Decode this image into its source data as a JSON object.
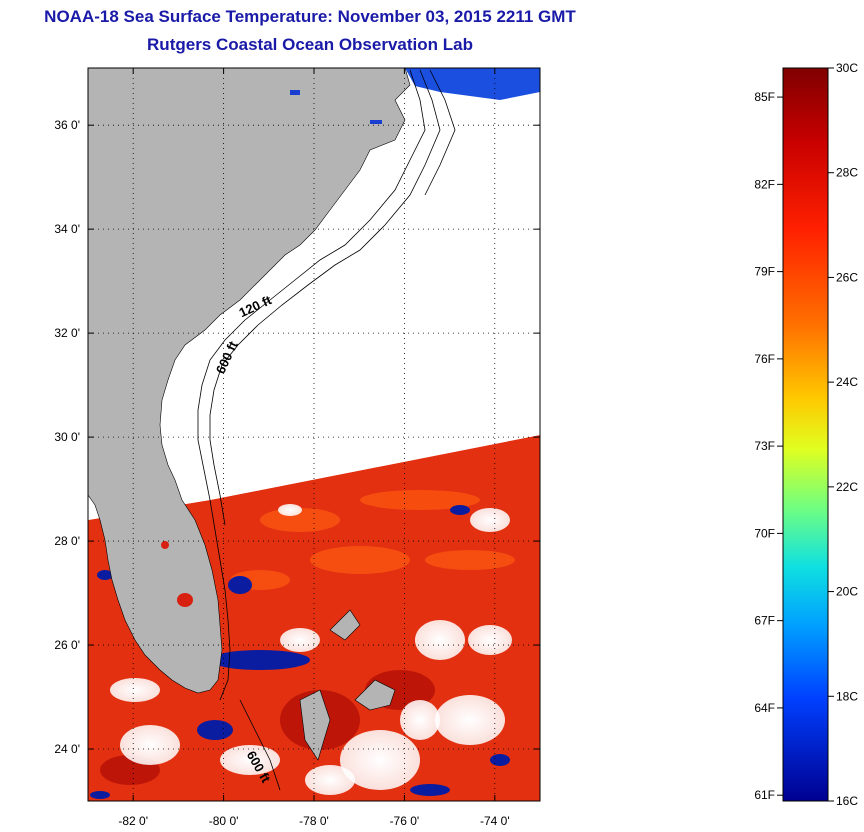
{
  "header": {
    "title": "NOAA-18 Sea Surface Temperature:  November 03, 2015 2211 GMT",
    "subtitle": "Rutgers Coastal Ocean Observation Lab"
  },
  "map": {
    "lon_range": [
      -83,
      -73
    ],
    "lat_range": [
      23,
      37.1
    ],
    "lat_ticks": [
      {
        "value": 36,
        "label": "36 0'"
      },
      {
        "value": 34,
        "label": "34 0'"
      },
      {
        "value": 32,
        "label": "32 0'"
      },
      {
        "value": 30,
        "label": "30 0'"
      },
      {
        "value": 28,
        "label": "28 0'"
      },
      {
        "value": 26,
        "label": "26 0'"
      },
      {
        "value": 24,
        "label": "24 0'"
      }
    ],
    "lon_ticks": [
      {
        "value": -82,
        "label": "-82 0'"
      },
      {
        "value": -80,
        "label": "-80 0'"
      },
      {
        "value": -78,
        "label": "-78 0'"
      },
      {
        "value": -76,
        "label": "-76 0'"
      },
      {
        "value": -74,
        "label": "-74 0'"
      }
    ],
    "contour_labels": [
      {
        "text": "120 ft",
        "lon": -79.6,
        "lat": 32.3,
        "angle": -25
      },
      {
        "text": "600 ft",
        "lon": -80.0,
        "lat": 31.2,
        "angle": -65
      },
      {
        "text": "600 ft",
        "lon": -79.5,
        "lat": 23.9,
        "angle": 60
      }
    ],
    "colors": {
      "land": "#b4b4b4",
      "no_data": "#ffffff",
      "sst_warm": "#e8200f",
      "sst_cool": "#0a1ca0"
    }
  },
  "colorbar": {
    "celsius_labels": [
      "30C",
      "28C",
      "26C",
      "24C",
      "22C",
      "20C",
      "18C",
      "16C"
    ],
    "fahrenheit_labels": [
      "85F",
      "82F",
      "79F",
      "76F",
      "73F",
      "70F",
      "67F",
      "64F",
      "61F"
    ],
    "c_min": 16,
    "c_max": 30,
    "f_values": [
      85,
      82,
      79,
      76,
      73,
      70,
      67,
      64,
      61
    ]
  }
}
